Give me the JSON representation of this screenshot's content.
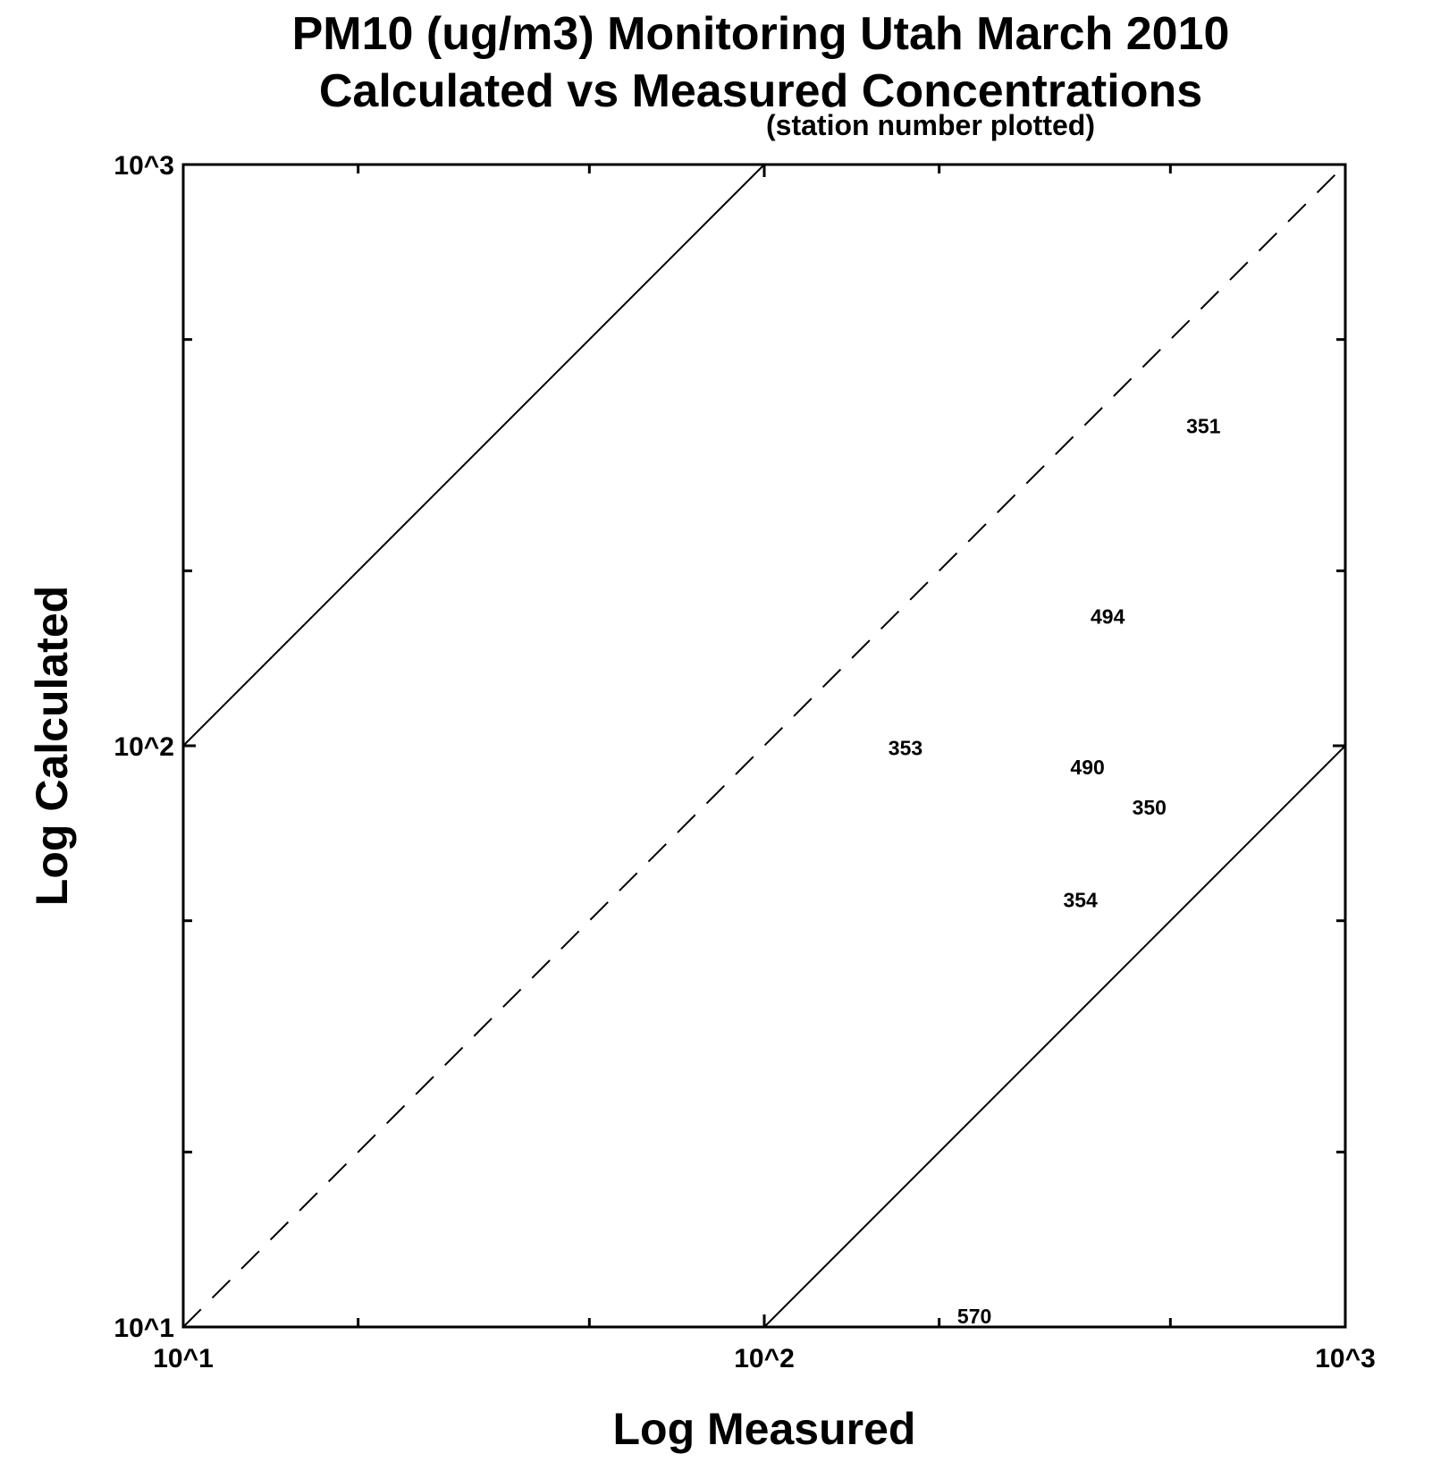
{
  "chart_data": {
    "type": "scatter",
    "title": "PM10 (ug/m3) Monitoring Utah March 2010",
    "subtitle": "Calculated vs Measured Concentrations",
    "note": "(station number plotted)",
    "xlabel": "Log Measured",
    "ylabel": "Log Calculated",
    "xscale": "log",
    "yscale": "log",
    "xlim": [
      10,
      1000
    ],
    "ylim": [
      10,
      1000
    ],
    "x_tick_labels": [
      "10^1",
      "10^2",
      "10^3"
    ],
    "y_tick_labels": [
      "10^1",
      "10^2",
      "10^3"
    ],
    "reference_lines": [
      {
        "style": "dashed",
        "relation": "y = x"
      },
      {
        "style": "solid",
        "relation": "y = 10x"
      },
      {
        "style": "solid",
        "relation": "y = x/10"
      }
    ],
    "points": [
      {
        "label": "351",
        "x": 570,
        "y": 340
      },
      {
        "label": "494",
        "x": 390,
        "y": 160
      },
      {
        "label": "353",
        "x": 175,
        "y": 95
      },
      {
        "label": "490",
        "x": 360,
        "y": 88
      },
      {
        "label": "350",
        "x": 460,
        "y": 75
      },
      {
        "label": "354",
        "x": 350,
        "y": 52
      },
      {
        "label": "570",
        "x": 230,
        "y": 10
      }
    ]
  }
}
